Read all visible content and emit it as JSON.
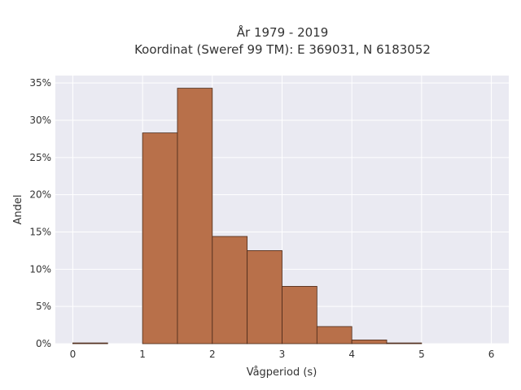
{
  "chart_data": {
    "type": "bar",
    "title": "År 1979 - 2019",
    "subtitle": "Koordinat (Sweref 99 TM): E 369031, N 6183052",
    "xlabel": "Vågperiod (s)",
    "ylabel": "Andel",
    "bin_edges": [
      0,
      0.5,
      1,
      1.5,
      2,
      2.5,
      3,
      3.5,
      4,
      4.5,
      5
    ],
    "values": [
      0.1,
      0,
      28.3,
      34.3,
      14.4,
      12.5,
      7.7,
      2.3,
      0.5,
      0.1
    ],
    "xlim": [
      -0.25,
      6.25
    ],
    "ylim": [
      0,
      36
    ],
    "xticks": [
      0,
      1,
      2,
      3,
      4,
      5,
      6
    ],
    "xtick_labels": [
      "0",
      "1",
      "2",
      "3",
      "4",
      "5",
      "6"
    ],
    "yticks": [
      0,
      5,
      10,
      15,
      20,
      25,
      30,
      35
    ],
    "ytick_labels": [
      "0%",
      "5%",
      "10%",
      "15%",
      "20%",
      "25%",
      "30%",
      "35%"
    ],
    "grid": true,
    "colors": {
      "bar": "#b8704a",
      "bar_edge": "#4a2a1a",
      "plot_bg": "#eaeaf2",
      "grid": "#ffffff"
    }
  }
}
